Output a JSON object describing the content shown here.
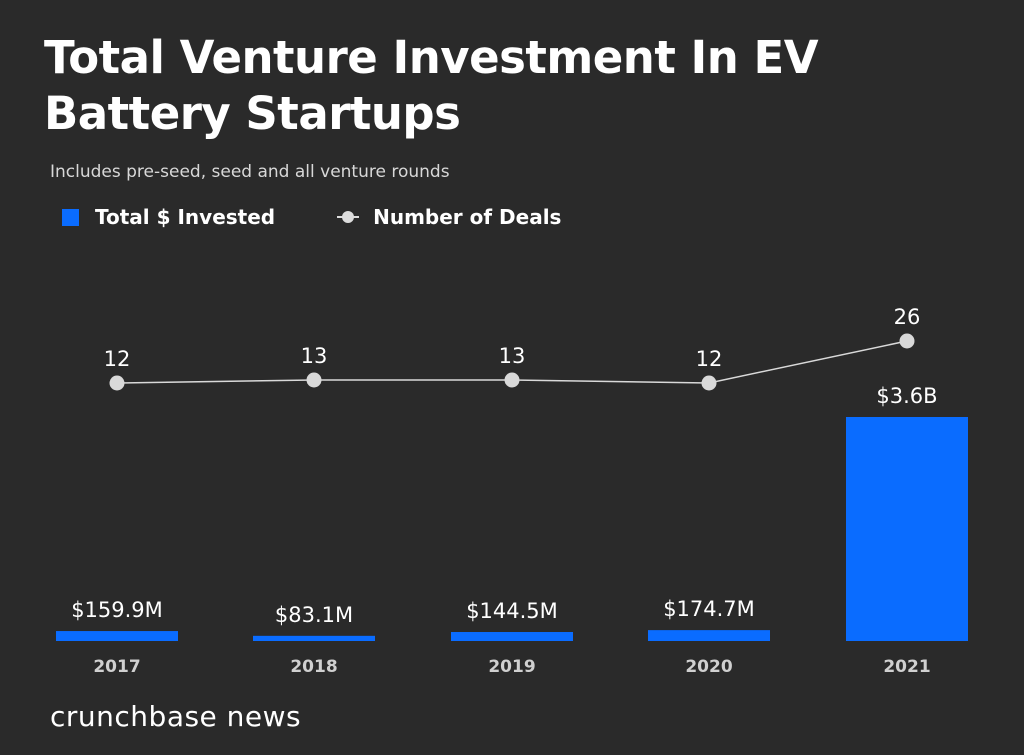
{
  "colors": {
    "background": "#2a2a2a",
    "bar": "#0a6cff",
    "line": "#d9d9d9"
  },
  "chart_data": {
    "type": "bar+line",
    "title": "Total Venture Investment In EV Battery Startups",
    "subtitle": "Includes pre-seed, seed and all venture rounds",
    "categories": [
      "2017",
      "2018",
      "2019",
      "2020",
      "2021"
    ],
    "series": [
      {
        "name": "Total $ Invested",
        "type": "bar",
        "values_musd": [
          159.9,
          83.1,
          144.5,
          174.7,
          3600
        ],
        "labels": [
          "$159.9M",
          "$83.1M",
          "$144.5M",
          "$174.7M",
          "$3.6B"
        ]
      },
      {
        "name": "Number of Deals",
        "type": "line",
        "values": [
          12,
          13,
          13,
          12,
          26
        ],
        "labels": [
          "12",
          "13",
          "13",
          "12",
          "26"
        ]
      }
    ],
    "legend": "top-left",
    "grid": false
  },
  "logo": "crunchbase news"
}
